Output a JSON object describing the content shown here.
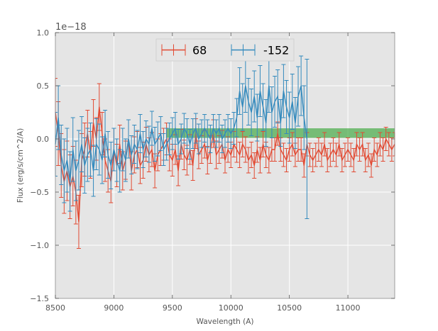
{
  "chart_data": {
    "type": "line",
    "title": "",
    "xlabel": "Wavelength (A)",
    "ylabel": "Flux (erg/s/cm^2/A)",
    "y_offset_label": "1e−18",
    "xlim": [
      8500,
      11400
    ],
    "ylim": [
      -1.5,
      1.0
    ],
    "xticks": [
      8500,
      9000,
      9500,
      10000,
      10500,
      11000
    ],
    "xtick_labels": [
      "8500",
      "9000",
      "9500",
      "10000",
      "10500",
      "11000"
    ],
    "yticks": [
      -1.5,
      -1.0,
      -0.5,
      0.0,
      0.5,
      1.0
    ],
    "ytick_labels": [
      "−1.5",
      "−1.0",
      "−0.5",
      "0.0",
      "0.5",
      "1.0"
    ],
    "grid": true,
    "legend_position": "top-center",
    "band": {
      "x_start": 9450,
      "x_end": 11400,
      "y_low": 0.01,
      "y_high": 0.1,
      "color": "#2ca02c"
    },
    "series": [
      {
        "name": "68",
        "color": "#e24a33",
        "x": [
          8500,
          8525,
          8550,
          8575,
          8600,
          8625,
          8650,
          8675,
          8700,
          8725,
          8750,
          8775,
          8800,
          8825,
          8850,
          8875,
          8900,
          8925,
          8950,
          8975,
          9000,
          9025,
          9050,
          9075,
          9100,
          9125,
          9150,
          9175,
          9200,
          9225,
          9250,
          9275,
          9300,
          9325,
          9350,
          9375,
          9400,
          9425,
          9450,
          9475,
          9500,
          9525,
          9550,
          9575,
          9600,
          9625,
          9650,
          9675,
          9700,
          9725,
          9750,
          9775,
          9800,
          9825,
          9850,
          9875,
          9900,
          9925,
          9950,
          9975,
          10000,
          10025,
          10050,
          10075,
          10100,
          10125,
          10150,
          10175,
          10200,
          10225,
          10250,
          10275,
          10300,
          10325,
          10350,
          10375,
          10400,
          10425,
          10450,
          10475,
          10500,
          10525,
          10550,
          10575,
          10600,
          10625,
          10650,
          10675,
          10700,
          10725,
          10750,
          10775,
          10800,
          10825,
          10850,
          10875,
          10900,
          10925,
          10950,
          10975,
          11000,
          11025,
          11050,
          11075,
          11100,
          11125,
          11150,
          11175,
          11200,
          11225,
          11250,
          11275,
          11300,
          11325,
          11350,
          11375,
          11400
        ],
        "y": [
          0.25,
          0.05,
          -0.25,
          -0.4,
          -0.3,
          -0.45,
          -0.35,
          -0.5,
          -0.78,
          -0.2,
          -0.1,
          0.05,
          -0.15,
          0.15,
          0.0,
          0.3,
          0.05,
          -0.2,
          -0.3,
          -0.4,
          -0.1,
          -0.25,
          -0.05,
          -0.3,
          -0.2,
          0.0,
          -0.3,
          -0.15,
          -0.1,
          -0.25,
          -0.2,
          -0.05,
          -0.15,
          -0.1,
          -0.3,
          -0.15,
          -0.1,
          -0.05,
          0.0,
          -0.15,
          -0.2,
          -0.1,
          -0.3,
          -0.05,
          -0.15,
          -0.2,
          -0.1,
          -0.25,
          0.05,
          -0.15,
          -0.1,
          -0.05,
          -0.2,
          -0.1,
          0.05,
          -0.15,
          -0.1,
          -0.05,
          -0.2,
          -0.1,
          -0.15,
          -0.05,
          -0.1,
          -0.15,
          -0.05,
          -0.1,
          -0.2,
          -0.15,
          -0.25,
          -0.1,
          -0.2,
          -0.05,
          -0.15,
          -0.2,
          -0.1,
          -0.1,
          0.05,
          -0.1,
          -0.15,
          -0.2,
          -0.1,
          -0.05,
          -0.15,
          -0.1,
          -0.1,
          -0.25,
          -0.05,
          -0.15,
          -0.2,
          -0.15,
          -0.1,
          -0.15,
          -0.05,
          -0.2,
          -0.15,
          -0.1,
          -0.15,
          -0.05,
          -0.2,
          -0.15,
          -0.1,
          -0.15,
          -0.2,
          -0.05,
          -0.1,
          -0.05,
          -0.2,
          -0.15,
          -0.25,
          -0.1,
          -0.15,
          -0.05,
          -0.1,
          0.0,
          -0.05,
          -0.1,
          -0.05
        ],
        "err": [
          0.32,
          0.3,
          0.3,
          0.3,
          0.28,
          0.3,
          0.28,
          0.3,
          0.25,
          0.25,
          0.25,
          0.22,
          0.22,
          0.22,
          0.2,
          0.22,
          0.2,
          0.2,
          0.2,
          0.2,
          0.2,
          0.2,
          0.18,
          0.18,
          0.18,
          0.18,
          0.18,
          0.17,
          0.17,
          0.17,
          0.17,
          0.16,
          0.16,
          0.16,
          0.16,
          0.15,
          0.15,
          0.15,
          0.15,
          0.15,
          0.15,
          0.14,
          0.14,
          0.14,
          0.14,
          0.14,
          0.14,
          0.14,
          0.14,
          0.13,
          0.13,
          0.13,
          0.13,
          0.13,
          0.13,
          0.13,
          0.13,
          0.13,
          0.12,
          0.12,
          0.12,
          0.12,
          0.12,
          0.12,
          0.12,
          0.12,
          0.12,
          0.12,
          0.12,
          0.12,
          0.12,
          0.12,
          0.12,
          0.12,
          0.11,
          0.11,
          0.11,
          0.11,
          0.11,
          0.11,
          0.11,
          0.11,
          0.11,
          0.11,
          0.11,
          0.11,
          0.11,
          0.11,
          0.11,
          0.11,
          0.11,
          0.11,
          0.11,
          0.11,
          0.11,
          0.11,
          0.11,
          0.11,
          0.11,
          0.11,
          0.11,
          0.11,
          0.11,
          0.11,
          0.11,
          0.11,
          0.11,
          0.11,
          0.11,
          0.11,
          0.11,
          0.11,
          0.11,
          0.11,
          0.11,
          0.11,
          0.11
        ]
      },
      {
        "name": "-152",
        "color": "#348abd",
        "x": [
          8500,
          8525,
          8550,
          8575,
          8600,
          8625,
          8650,
          8675,
          8700,
          8725,
          8750,
          8775,
          8800,
          8825,
          8850,
          8875,
          8900,
          8925,
          8950,
          8975,
          9000,
          9025,
          9050,
          9075,
          9100,
          9125,
          9150,
          9175,
          9200,
          9225,
          9250,
          9275,
          9300,
          9325,
          9350,
          9375,
          9400,
          9425,
          9450,
          9475,
          9500,
          9525,
          9550,
          9575,
          9600,
          9625,
          9650,
          9675,
          9700,
          9725,
          9750,
          9775,
          9800,
          9825,
          9850,
          9875,
          9900,
          9925,
          9950,
          9975,
          10000,
          10025,
          10050,
          10075,
          10100,
          10125,
          10150,
          10175,
          10200,
          10225,
          10250,
          10275,
          10300,
          10325,
          10350,
          10375,
          10400,
          10425,
          10450,
          10475,
          10500,
          10525,
          10550,
          10575,
          10600,
          10625,
          10650
        ],
        "y": [
          -0.05,
          0.2,
          -0.15,
          -0.3,
          -0.2,
          -0.4,
          -0.1,
          -0.3,
          -0.2,
          -0.05,
          -0.25,
          -0.15,
          -0.1,
          -0.3,
          -0.05,
          -0.1,
          -0.2,
          0.05,
          -0.15,
          -0.25,
          -0.1,
          -0.2,
          -0.3,
          -0.1,
          -0.2,
          0.0,
          -0.15,
          -0.05,
          -0.1,
          0.05,
          -0.1,
          0.0,
          -0.05,
          0.1,
          -0.05,
          0.0,
          0.05,
          -0.1,
          -0.05,
          0.0,
          0.05,
          0.1,
          -0.05,
          0.0,
          0.1,
          0.05,
          -0.05,
          0.05,
          0.1,
          0.0,
          0.05,
          0.1,
          0.05,
          0.0,
          0.1,
          0.05,
          0.1,
          0.0,
          0.05,
          0.1,
          0.05,
          0.1,
          0.2,
          0.45,
          0.3,
          0.5,
          0.35,
          0.25,
          0.4,
          0.2,
          0.45,
          0.3,
          0.15,
          0.5,
          0.25,
          0.35,
          0.4,
          0.15,
          0.45,
          0.3,
          0.2,
          0.35,
          0.15,
          0.4,
          0.5,
          0.2,
          0.0
        ],
        "err": [
          0.3,
          0.3,
          0.28,
          0.3,
          0.3,
          0.28,
          0.3,
          0.28,
          0.28,
          0.26,
          0.26,
          0.25,
          0.25,
          0.24,
          0.24,
          0.24,
          0.22,
          0.22,
          0.22,
          0.22,
          0.2,
          0.2,
          0.2,
          0.2,
          0.2,
          0.18,
          0.18,
          0.18,
          0.18,
          0.18,
          0.17,
          0.17,
          0.17,
          0.16,
          0.16,
          0.16,
          0.16,
          0.15,
          0.15,
          0.15,
          0.15,
          0.15,
          0.14,
          0.14,
          0.14,
          0.14,
          0.14,
          0.14,
          0.14,
          0.14,
          0.13,
          0.13,
          0.13,
          0.13,
          0.13,
          0.13,
          0.13,
          0.13,
          0.13,
          0.13,
          0.14,
          0.15,
          0.18,
          0.22,
          0.22,
          0.25,
          0.22,
          0.22,
          0.24,
          0.22,
          0.24,
          0.22,
          0.22,
          0.25,
          0.24,
          0.24,
          0.25,
          0.22,
          0.25,
          0.25,
          0.24,
          0.26,
          0.24,
          0.28,
          0.28,
          0.3,
          0.75
        ]
      }
    ]
  }
}
